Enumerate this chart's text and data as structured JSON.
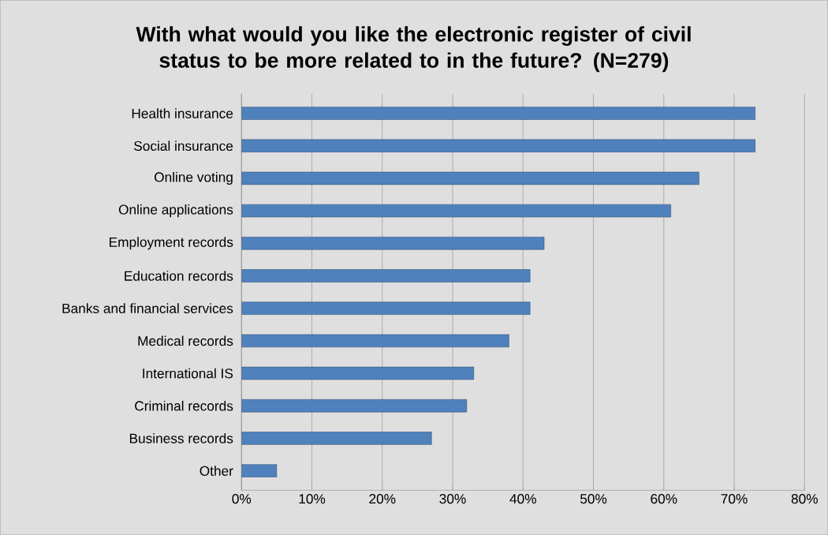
{
  "chart_data": {
    "type": "bar",
    "orientation": "horizontal",
    "title": "With what would you like the electronic register of civil status to be more related to in the future? (N=279)",
    "categories": [
      "Health insurance",
      "Social insurance",
      "Online voting",
      "Online applications",
      "Employment records",
      "Education records",
      "Banks and financial services",
      "Medical records",
      "International IS",
      "Criminal records",
      "Business records",
      "Other"
    ],
    "values": [
      73,
      73,
      65,
      61,
      43,
      41,
      41,
      38,
      33,
      32,
      27,
      5
    ],
    "color": "#4f81bd",
    "xlim": [
      0,
      80
    ],
    "xticks": [
      {
        "value": 0,
        "label": "0%"
      },
      {
        "value": 10,
        "label": "10%"
      },
      {
        "value": 20,
        "label": "20%"
      },
      {
        "value": 30,
        "label": "30%"
      },
      {
        "value": 40,
        "label": "40%"
      },
      {
        "value": 50,
        "label": "50%"
      },
      {
        "value": 60,
        "label": "60%"
      },
      {
        "value": 70,
        "label": "70%"
      },
      {
        "value": 80,
        "label": "80%"
      }
    ],
    "grid": "x"
  }
}
